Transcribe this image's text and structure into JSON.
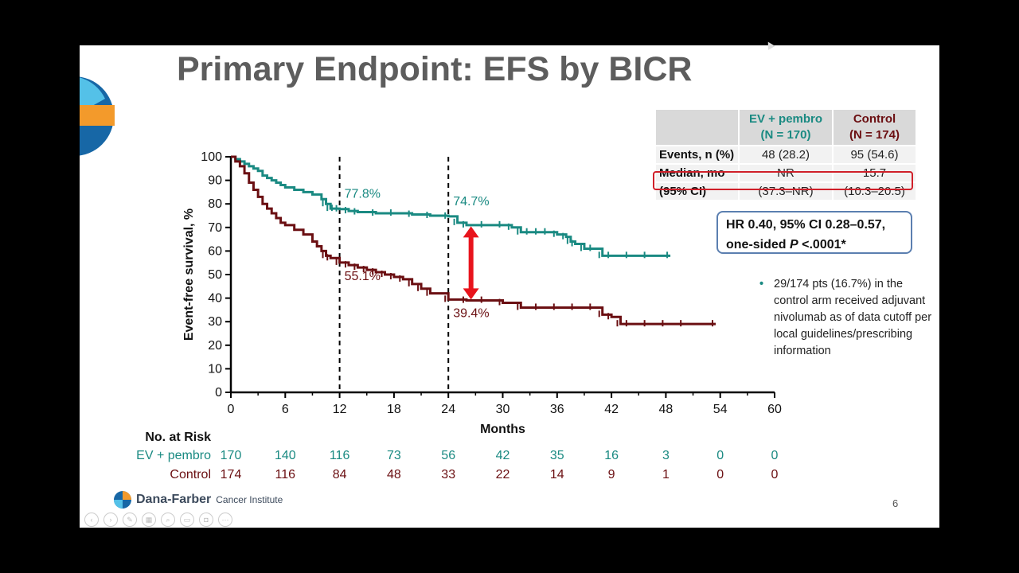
{
  "title": "Primary Endpoint: EFS by BICR",
  "colors": {
    "ev": "#1a8a82",
    "control": "#6b0f12",
    "arrow": "#e8141c"
  },
  "table": {
    "col1": "EV + pembro",
    "col1_n": "(N = 170)",
    "col2": "Control",
    "col2_n": "(N = 174)",
    "rows": [
      {
        "label": "Events, n (%)",
        "ev": "48 (28.2)",
        "ctrl": "95 (54.6)"
      },
      {
        "label": "Median, mo",
        "ev": "NR",
        "ctrl": "15.7"
      },
      {
        "label": "(95% CI)",
        "ev": "(37.3–NR)",
        "ctrl": "(10.3–20.5)"
      }
    ]
  },
  "hr": {
    "line1": "HR 0.40, 95% CI 0.28–0.57,",
    "line2_pre": "one-sided ",
    "line2_p": "P",
    "line2_post": " <.0001*"
  },
  "note": "29/174 pts (16.7%) in the control arm received adjuvant nivolumab as of data cutoff per local guidelines/prescribing information",
  "footer": {
    "name": "Dana-Farber",
    "institute": "Cancer Institute",
    "page": "6"
  },
  "chart_data": {
    "type": "line",
    "xlabel": "Months",
    "ylabel": "Event-free survival, %",
    "xlim": [
      0,
      60
    ],
    "ylim": [
      0,
      100
    ],
    "xticks": [
      0,
      6,
      12,
      18,
      24,
      30,
      36,
      42,
      48,
      54,
      60
    ],
    "yticks": [
      0,
      10,
      20,
      30,
      40,
      50,
      60,
      70,
      80,
      90,
      100
    ],
    "vlines": [
      12,
      24
    ],
    "annotations": [
      {
        "text": "77.8%",
        "x": 12,
        "y": 77.8,
        "series": "EV + pembro"
      },
      {
        "text": "74.7%",
        "x": 24,
        "y": 74.7,
        "series": "EV + pembro"
      },
      {
        "text": "55.1%",
        "x": 12,
        "y": 55.1,
        "series": "Control"
      },
      {
        "text": "39.4%",
        "x": 24,
        "y": 39.4,
        "series": "Control"
      }
    ],
    "arrow": {
      "x": 26.5,
      "y_from": 39.4,
      "y_to": 70.5
    },
    "series": [
      {
        "name": "EV + pembro",
        "x": [
          0,
          0.5,
          1,
          1.5,
          2,
          2.5,
          3,
          3.5,
          4,
          4.5,
          5,
          5.5,
          6,
          7,
          8,
          9,
          10,
          10.5,
          11,
          11.5,
          12,
          13,
          14,
          16,
          18,
          20,
          22,
          24,
          25,
          26,
          28,
          30,
          31,
          32,
          33,
          34,
          35,
          36,
          37,
          37.5,
          38,
          39,
          40,
          41,
          42,
          44,
          46,
          48.5
        ],
        "y": [
          100,
          99,
          98,
          97,
          96,
          95,
          94,
          92,
          91,
          90,
          89,
          88,
          87,
          86,
          85,
          84,
          82,
          80,
          78,
          78,
          77.8,
          77,
          76.5,
          76,
          76,
          75.5,
          75,
          74.7,
          72,
          71,
          71,
          71,
          70,
          68,
          68,
          68,
          68,
          67,
          66,
          64,
          63,
          61,
          61,
          58,
          58,
          58,
          58,
          58
        ]
      },
      {
        "name": "Control",
        "x": [
          0,
          0.5,
          1,
          1.5,
          2,
          2.5,
          3,
          3.5,
          4,
          4.5,
          5,
          5.5,
          6,
          7,
          8,
          9,
          9.5,
          10,
          10.5,
          11,
          12,
          13,
          14,
          15,
          16,
          17,
          18,
          19,
          20,
          21,
          22,
          24,
          26,
          28,
          30,
          32,
          34,
          36,
          38,
          40,
          41,
          42,
          43,
          44,
          46,
          48,
          50,
          53.5
        ],
        "y": [
          100,
          98,
          96,
          93,
          89,
          86,
          83,
          80,
          78,
          76,
          74,
          72,
          71,
          69,
          67,
          64,
          62,
          60,
          58,
          57,
          55.1,
          54,
          53,
          52,
          51,
          50,
          49,
          48,
          46,
          44,
          42,
          39.4,
          39,
          39,
          38,
          36,
          36,
          36,
          36,
          36,
          33,
          32,
          29,
          29,
          29,
          29,
          29,
          29
        ]
      }
    ]
  },
  "risk_table": {
    "title": "No. at Risk",
    "rows": [
      {
        "label": "EV + pembro",
        "values": [
          "170",
          "140",
          "116",
          "73",
          "56",
          "42",
          "35",
          "16",
          "3",
          "0",
          "0"
        ]
      },
      {
        "label": "Control",
        "values": [
          "174",
          "116",
          "84",
          "48",
          "33",
          "22",
          "14",
          "9",
          "1",
          "0",
          "0"
        ]
      }
    ]
  }
}
